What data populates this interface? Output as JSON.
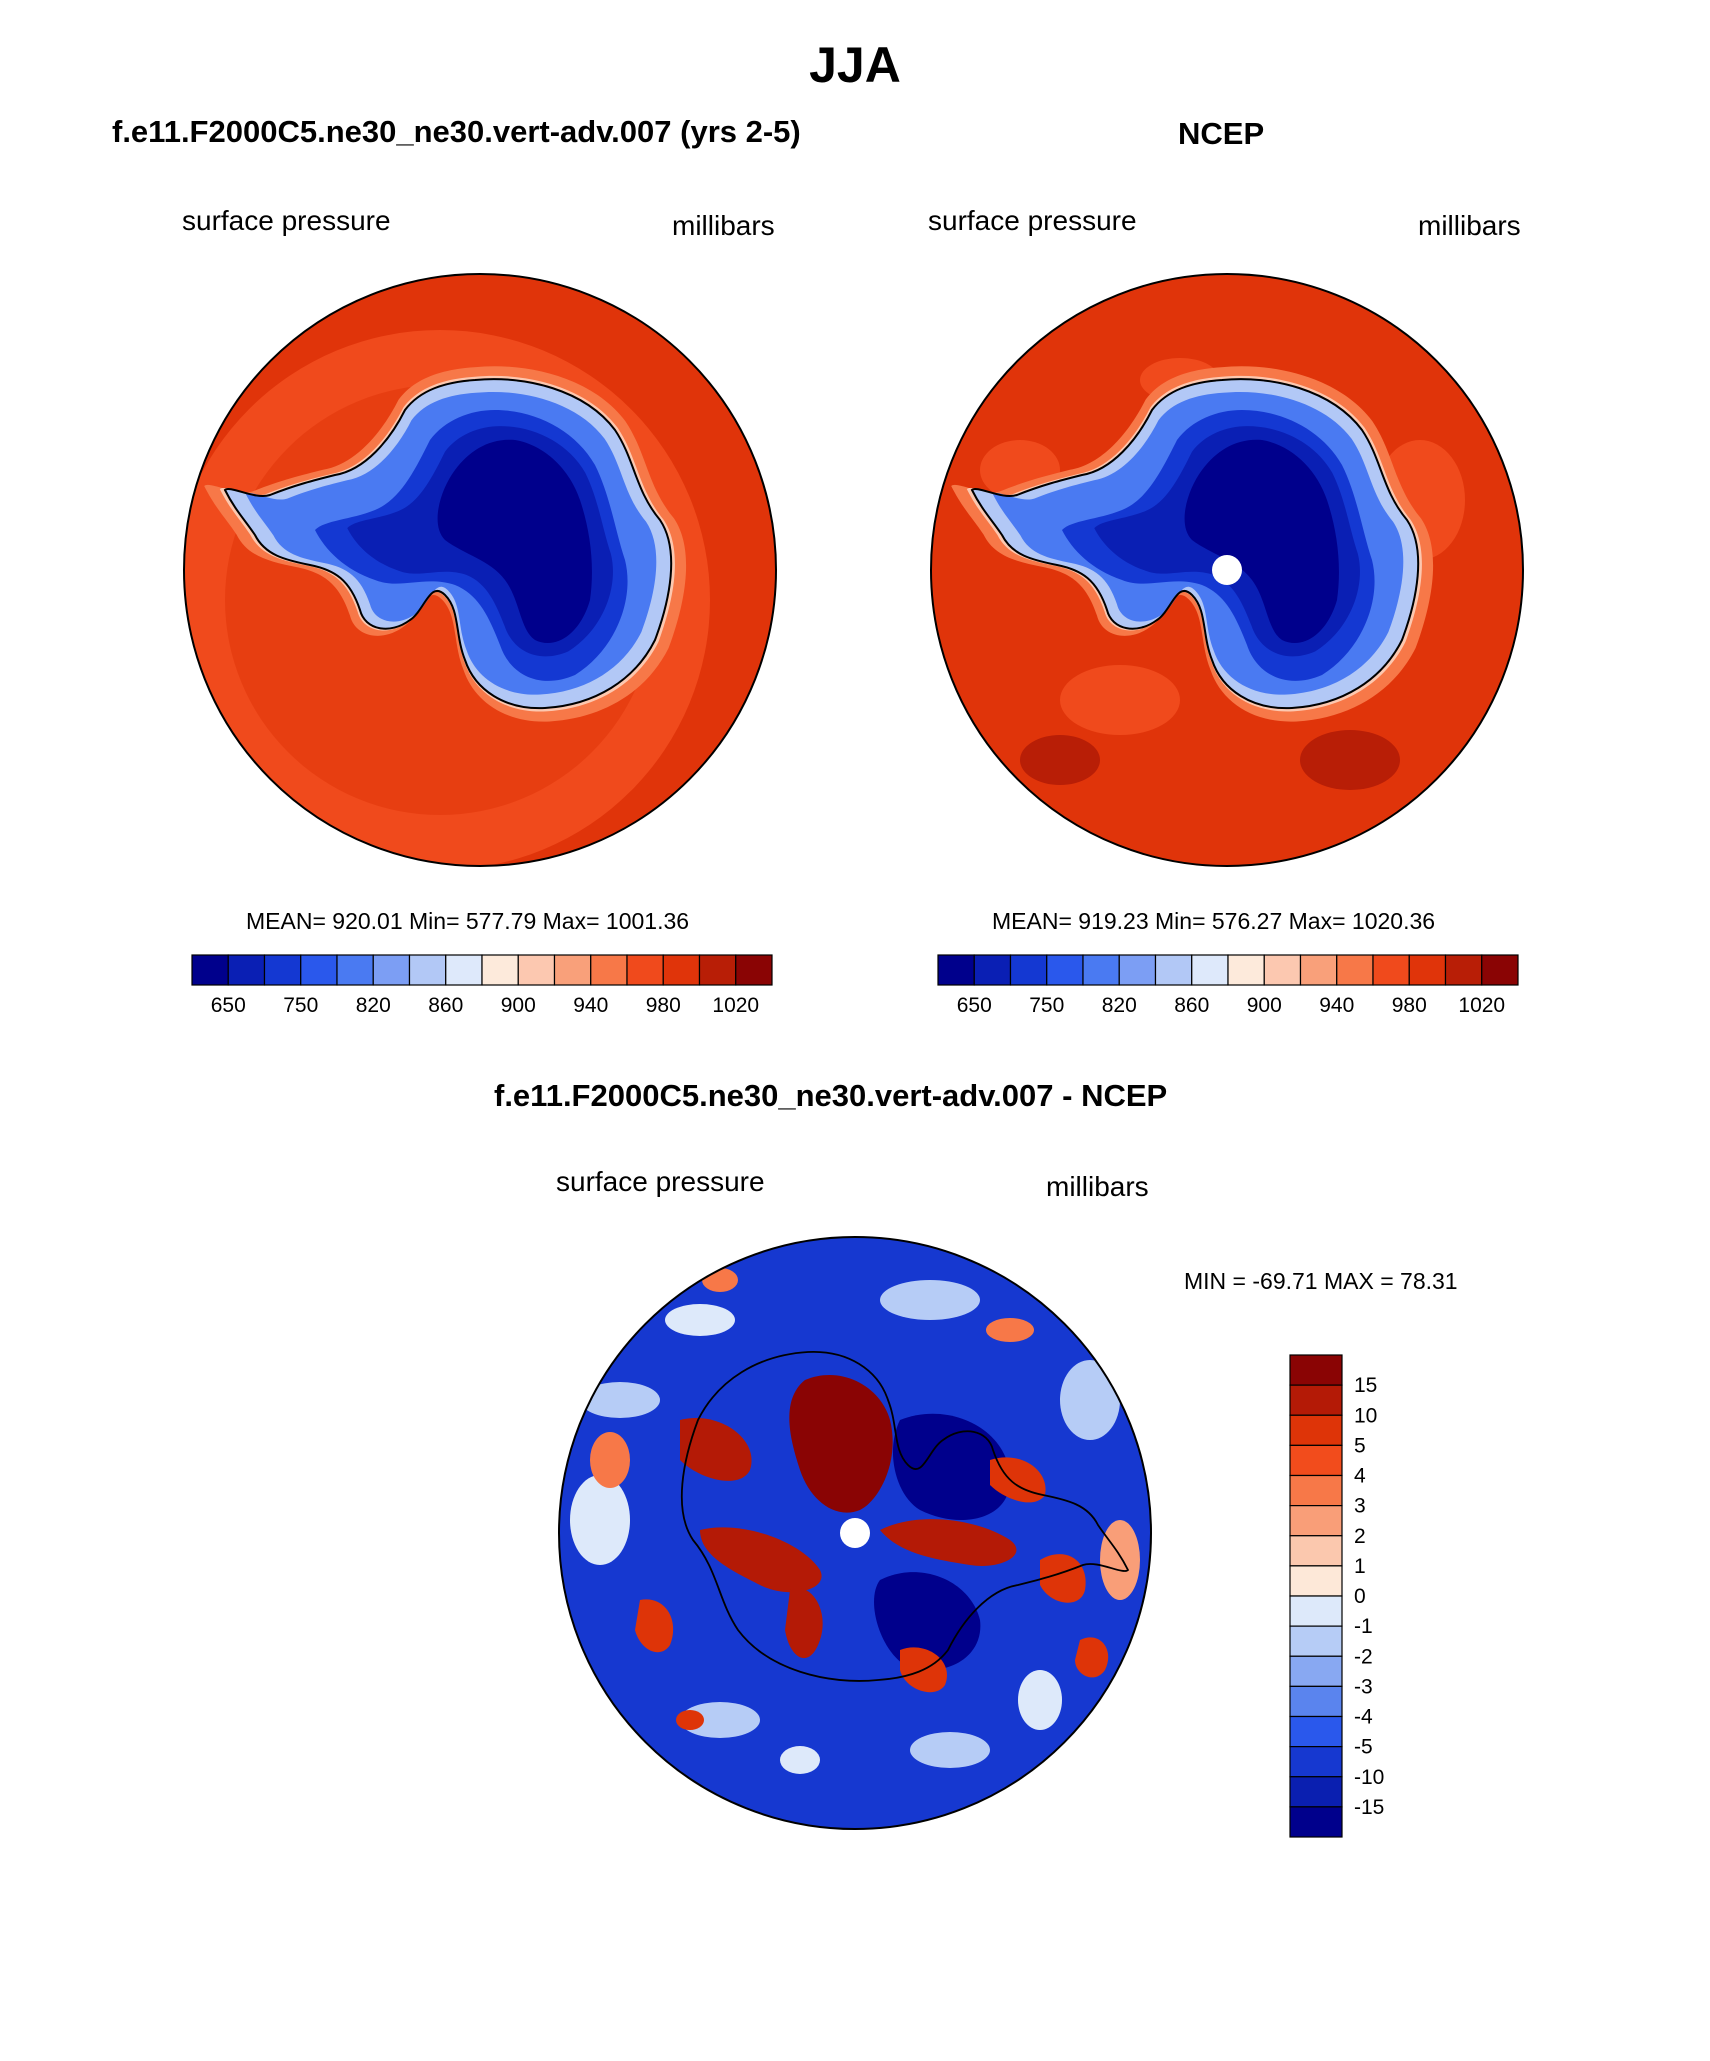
{
  "figure": {
    "title": "JJA",
    "panels": [
      {
        "id": "model",
        "title": "f.e11.F2000C5.ne30_ne30.vert-adv.007 (yrs 2-5)",
        "left_label": "surface pressure",
        "right_label": "millibars",
        "stats": "MEAN= 920.01  Min= 577.79  Max= 1001.36"
      },
      {
        "id": "obs",
        "title": "NCEP",
        "left_label": "surface pressure",
        "right_label": "millibars",
        "stats": "MEAN= 919.23  Min= 576.27  Max= 1020.36"
      },
      {
        "id": "diff",
        "title": "f.e11.F2000C5.ne30_ne30.vert-adv.007 - NCEP",
        "left_label": "surface pressure",
        "right_label": "millibars",
        "stats": "MIN = -69.71 MAX =  78.31"
      }
    ],
    "abs_colorbar": {
      "colors": [
        "#00008c",
        "#0a1fb4",
        "#1438d2",
        "#2a58ec",
        "#4a7af2",
        "#7c9ef4",
        "#b2c8f6",
        "#dee9fb",
        "#fdeadb",
        "#fcc8b0",
        "#f9a07a",
        "#f77848",
        "#f04a1c",
        "#e0340a",
        "#b81e06",
        "#8a0404"
      ],
      "ticks": [
        "650",
        "750",
        "820",
        "860",
        "900",
        "940",
        "980",
        "1020"
      ]
    },
    "diff_colorbar": {
      "colors_top_to_bottom": [
        "#8a0404",
        "#b41a06",
        "#de3408",
        "#f24c1c",
        "#f77848",
        "#f99e78",
        "#fbc8ae",
        "#fde8d8",
        "#dde9fa",
        "#b6ccf6",
        "#88a8f2",
        "#5a84ee",
        "#2a58ec",
        "#1638d0",
        "#0a1fb0",
        "#00008c"
      ],
      "ticks": [
        "15",
        "10",
        "5",
        "4",
        "3",
        "2",
        "1",
        "0",
        "-1",
        "-2",
        "-3",
        "-4",
        "-5",
        "-10",
        "-15"
      ]
    }
  }
}
